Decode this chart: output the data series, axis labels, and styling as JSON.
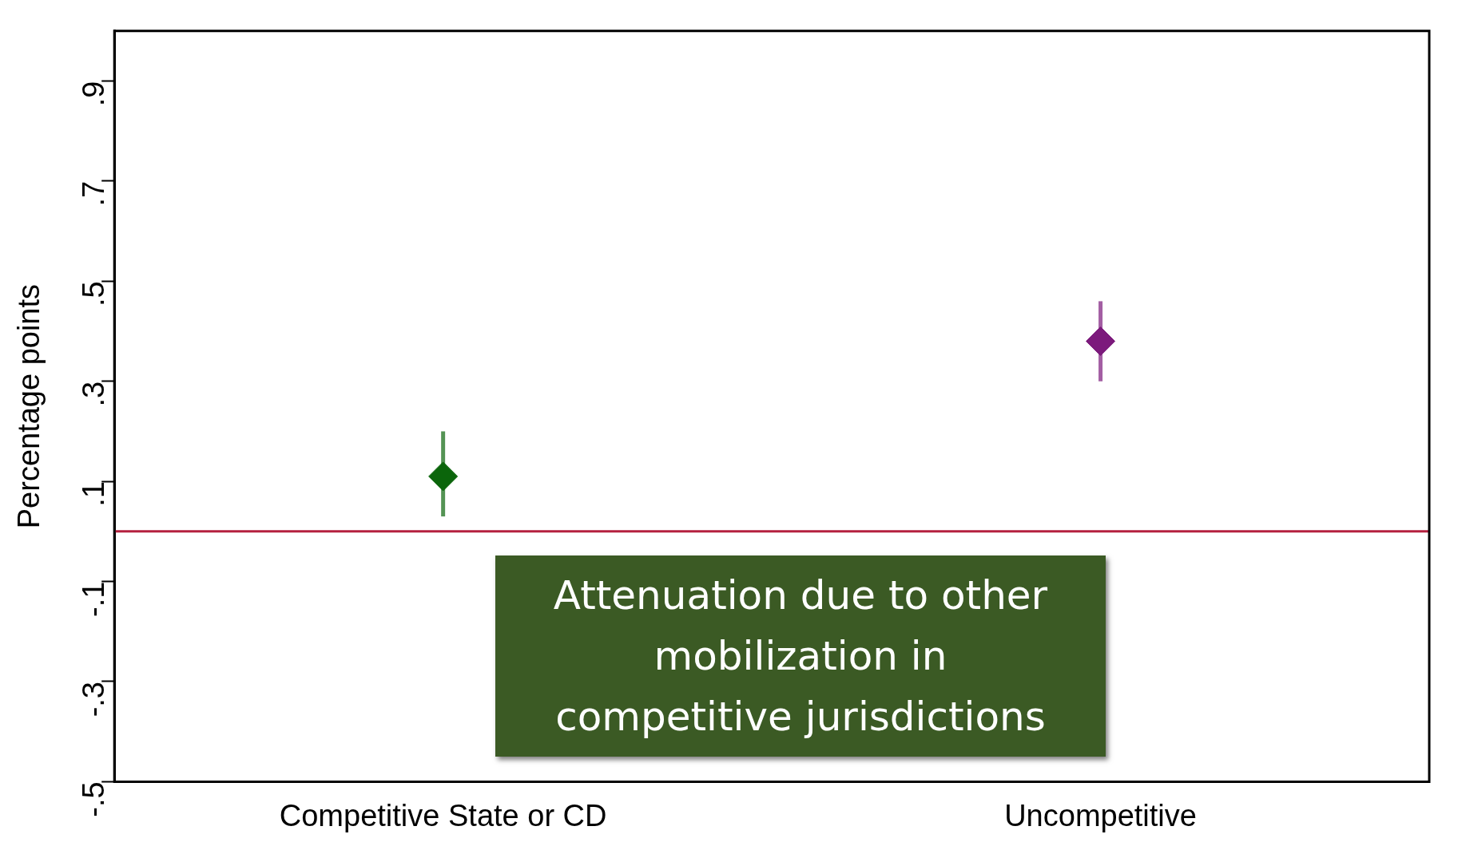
{
  "chart_data": {
    "type": "scatter",
    "ylabel": "Percentage points",
    "categories": [
      "Competitive State or CD",
      "Uncompetitive"
    ],
    "series": [
      {
        "colors": [
          "#0b650b",
          "#7c1a7c"
        ],
        "values": [
          0.11,
          0.38
        ],
        "errors": [
          [
            0.03,
            0.2
          ],
          [
            0.3,
            0.46
          ]
        ]
      }
    ],
    "ylim": [
      -0.5,
      1.0
    ],
    "yticks": [
      {
        "value": -0.5,
        "label": "-.5"
      },
      {
        "value": -0.3,
        "label": "-.3"
      },
      {
        "value": -0.1,
        "label": "-.1"
      },
      {
        "value": 0.1,
        "label": ".1"
      },
      {
        "value": 0.3,
        "label": ".3"
      },
      {
        "value": 0.5,
        "label": ".5"
      },
      {
        "value": 0.7,
        "label": ".7"
      },
      {
        "value": 0.9,
        "label": ".9"
      }
    ],
    "marker": "diamond",
    "grid": false,
    "legend": false,
    "ref_lines": [
      {
        "axis": "y",
        "value": 0,
        "color": "#b5213f"
      }
    ],
    "annotations": [
      "Attenuation due to other mobilization in competitive jurisdictions"
    ]
  }
}
